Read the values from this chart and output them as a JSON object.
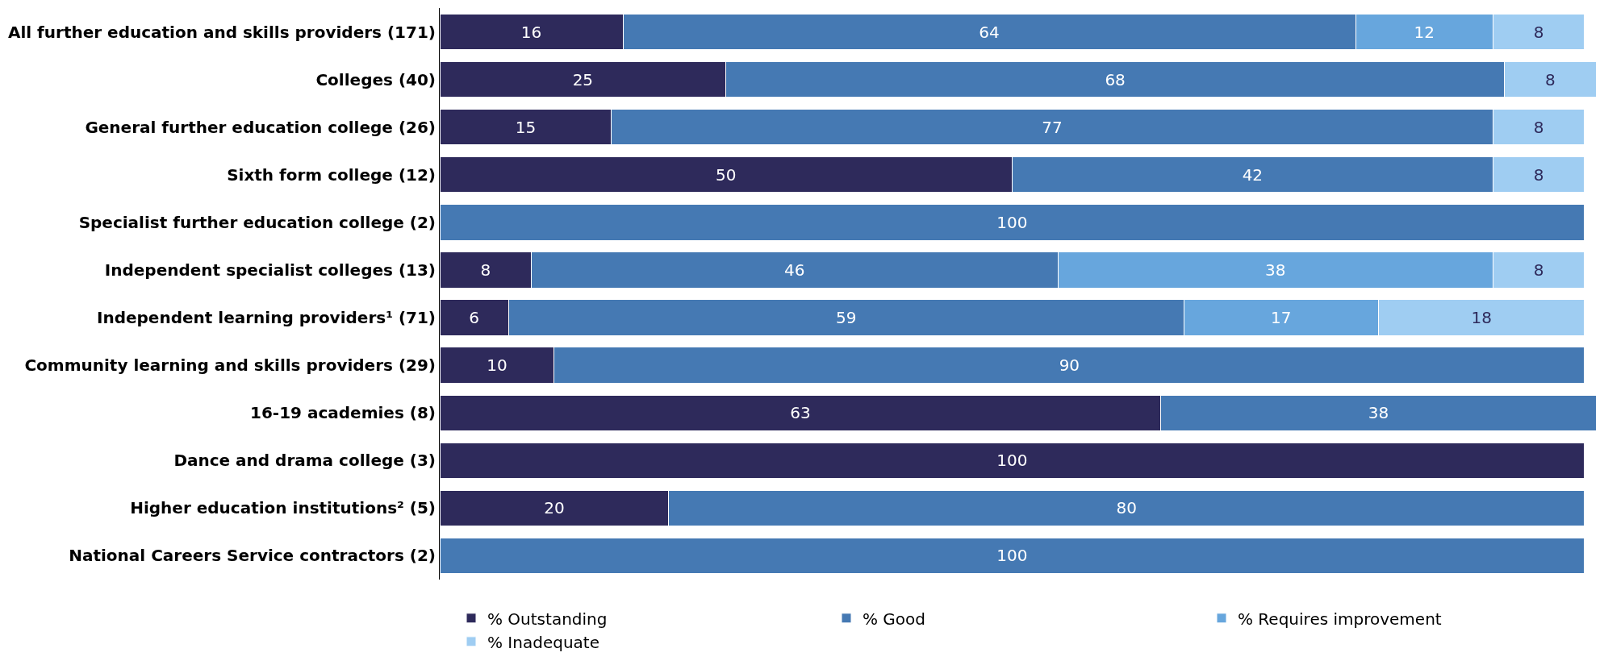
{
  "chart_data": {
    "type": "bar",
    "orientation": "horizontal",
    "stacked": true,
    "data_labels": true,
    "legend": "bottom",
    "grid": false,
    "tick_labels": "y",
    "categories": [
      "All further education and skills providers (171)",
      "Colleges (40)",
      "General further education college (26)",
      "Sixth form college (12)",
      "Specialist further education college (2)",
      "Independent specialist colleges (13)",
      "Independent learning providers¹ (71)",
      "Community learning and skills providers (29)",
      "16-19 academies (8)",
      "Dance and drama college (3)",
      "Higher education institutions² (5)",
      "National Careers Service contractors (2)"
    ],
    "series": [
      {
        "name": "% Outstanding",
        "color": "#2e2a5b",
        "values": [
          16,
          25,
          15,
          50,
          null,
          8,
          6,
          10,
          63,
          100,
          20,
          null
        ]
      },
      {
        "name": "% Good",
        "color": "#4579b3",
        "values": [
          64,
          68,
          77,
          42,
          100,
          46,
          59,
          90,
          38,
          null,
          80,
          100
        ]
      },
      {
        "name": "% Requires improvement",
        "color": "#67a6dd",
        "values": [
          12,
          null,
          null,
          null,
          null,
          38,
          17,
          null,
          null,
          null,
          null,
          null
        ]
      },
      {
        "name": "% Inadequate",
        "color": "#9fcdf2",
        "values": [
          8,
          8,
          8,
          8,
          null,
          8,
          18,
          null,
          null,
          null,
          null,
          null
        ]
      }
    ]
  }
}
